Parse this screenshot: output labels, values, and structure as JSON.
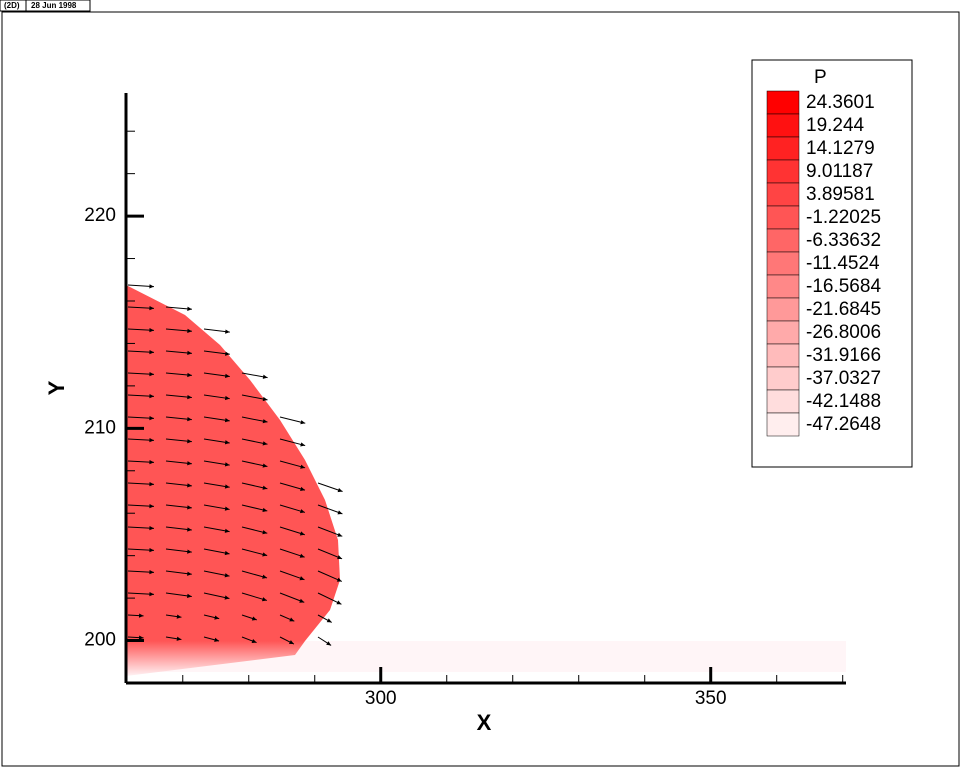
{
  "header": {
    "mode": "(2D)",
    "date": "28 Jun 1998"
  },
  "chart_data": {
    "type": "contour",
    "x_label": "X",
    "y_label": "Y",
    "xlim": [
      261.4,
      370.5
    ],
    "ylim": [
      198,
      225.8
    ],
    "xticks": [
      300,
      350
    ],
    "yticks": [
      200,
      210,
      220
    ],
    "xminorticks": [
      270,
      280,
      290,
      310,
      320,
      330,
      340,
      360,
      370
    ],
    "yminorticks": [
      202,
      204,
      206,
      208,
      212,
      214,
      216,
      218,
      222,
      224
    ],
    "legend": {
      "title": "P",
      "position": "upper right",
      "levels": [
        24.3601,
        19.244,
        14.1279,
        9.01187,
        3.89581,
        -1.22025,
        -6.33632,
        -11.4524,
        -16.5684,
        -21.6845,
        -26.8006,
        -31.9166,
        -37.0327,
        -42.1488,
        -47.2648
      ],
      "colors": [
        "#ff0000",
        "#ff1111",
        "#ff2222",
        "#ff3333",
        "#ff4444",
        "#ff5555",
        "#ff6666",
        "#ff7777",
        "#ff8888",
        "#ff9999",
        "#ffaaaa",
        "#ffbbbb",
        "#ffcccc",
        "#ffdddd",
        "#ffeeee"
      ]
    }
  }
}
